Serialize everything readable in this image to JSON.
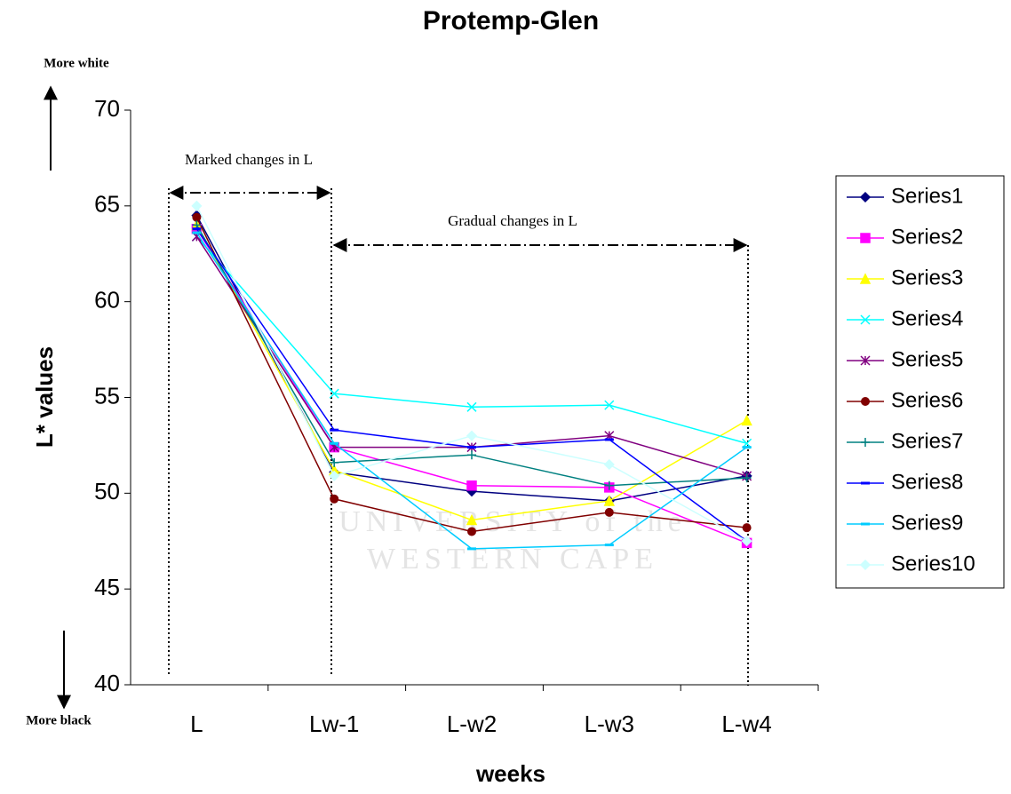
{
  "chart_data": {
    "type": "line",
    "title": "Protemp-Glen",
    "x_label": "weeks",
    "y_label": "L* values",
    "annotations": [
      "More white",
      "More black",
      "Marked changes in L",
      "Gradual changes in L"
    ],
    "watermark": [
      "UNIVERSITY of the",
      "WESTERN CAPE"
    ],
    "categories": [
      "L",
      "Lw-1",
      "L-w2",
      "L-w3",
      "L-w4"
    ],
    "ylim": [
      40,
      70
    ],
    "yticks": [
      40,
      45,
      50,
      55,
      60,
      65,
      70
    ],
    "grid": false,
    "legend": "right",
    "series": [
      {
        "name": "Series1",
        "color": "#000080",
        "marker": "diamond",
        "values": [
          64.5,
          51.1,
          50.1,
          49.6,
          50.9
        ]
      },
      {
        "name": "Series2",
        "color": "#ff00ff",
        "marker": "square",
        "values": [
          63.8,
          52.4,
          50.4,
          50.3,
          47.4
        ]
      },
      {
        "name": "Series3",
        "color": "#ffff00",
        "marker": "triangle",
        "values": [
          64.0,
          51.2,
          48.6,
          49.6,
          53.8
        ]
      },
      {
        "name": "Series4",
        "color": "#00ffff",
        "marker": "x",
        "values": [
          63.4,
          55.2,
          54.5,
          54.6,
          52.6
        ]
      },
      {
        "name": "Series5",
        "color": "#800080",
        "marker": "star",
        "values": [
          63.4,
          52.4,
          52.4,
          53.0,
          50.9
        ]
      },
      {
        "name": "Series6",
        "color": "#800000",
        "marker": "circle",
        "values": [
          64.4,
          49.7,
          48.0,
          49.0,
          48.2
        ]
      },
      {
        "name": "Series7",
        "color": "#008080",
        "marker": "plus",
        "values": [
          64.0,
          51.6,
          52.0,
          50.4,
          50.8
        ]
      },
      {
        "name": "Series8",
        "color": "#0000ff",
        "marker": "dash",
        "values": [
          63.8,
          53.3,
          52.4,
          52.8,
          47.5
        ]
      },
      {
        "name": "Series9",
        "color": "#00ccff",
        "marker": "dash",
        "values": [
          63.6,
          52.6,
          47.1,
          47.3,
          52.4
        ]
      },
      {
        "name": "Series10",
        "color": "#ccffff",
        "marker": "diamond",
        "values": [
          65.0,
          50.9,
          53.0,
          51.5,
          47.5
        ]
      }
    ]
  }
}
